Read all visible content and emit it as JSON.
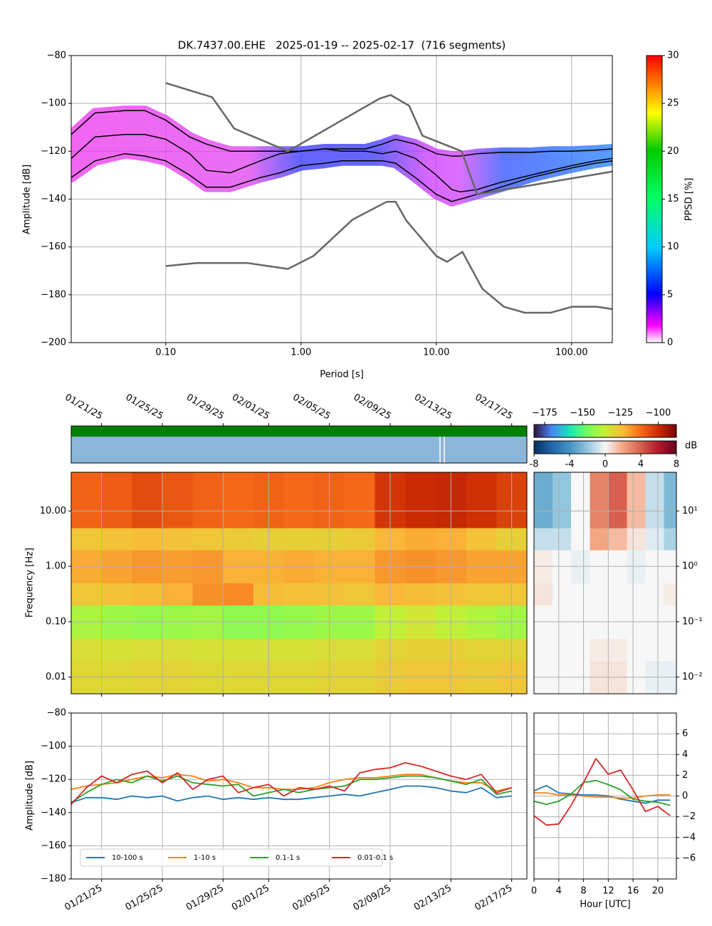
{
  "chart_data": [
    {
      "type": "ppsd",
      "title": "DK.7437.00.EHE   2025-01-19 -- 2025-02-17  (716 segments)",
      "xlabel": "Period [s]",
      "ylabel": "Amplitude [dB]",
      "log_x": true,
      "grid": true,
      "xlim": [
        0.02,
        200
      ],
      "ylim": [
        -200,
        -80
      ],
      "xticks": [
        {
          "value": 0.1,
          "label": "0.10"
        },
        {
          "value": 1,
          "label": "1.00"
        },
        {
          "value": 10,
          "label": "10.00"
        },
        {
          "value": 100,
          "label": "100.00"
        }
      ],
      "yticks": [
        {
          "value": -200,
          "label": "−200"
        },
        {
          "value": -180,
          "label": "−180"
        },
        {
          "value": -160,
          "label": "−160"
        },
        {
          "value": -140,
          "label": "−140"
        },
        {
          "value": -120,
          "label": "−120"
        },
        {
          "value": -100,
          "label": "−100"
        },
        {
          "value": -80,
          "label": "−80"
        }
      ],
      "x": [
        0.02,
        0.03,
        0.05,
        0.07,
        0.1,
        0.15,
        0.2,
        0.3,
        0.5,
        0.7,
        1,
        1.5,
        2,
        3,
        4,
        5,
        7,
        10,
        13,
        15,
        20,
        30,
        50,
        70,
        100,
        150,
        200
      ],
      "percentile_lines": [
        {
          "color": "#000000",
          "values": [
            -113,
            -104,
            -103,
            -103,
            -107,
            -114,
            -117,
            -120,
            -120,
            -120,
            -120,
            -119,
            -119,
            -119,
            -117,
            -115,
            -117,
            -121,
            -122,
            -122,
            -121,
            -120.5,
            -120.5,
            -120,
            -120,
            -119.5,
            -119
          ]
        },
        {
          "color": "#000000",
          "values": [
            -123,
            -114,
            -113,
            -113,
            -115,
            -121,
            -128,
            -129,
            -124,
            -121,
            -120,
            -119,
            -120,
            -120,
            -121,
            -120,
            -123,
            -130,
            -136,
            -137,
            -136,
            -133,
            -130,
            -128,
            -126,
            -124,
            -123
          ]
        },
        {
          "color": "#000000",
          "values": [
            -131,
            -124,
            -121,
            -122,
            -124,
            -130,
            -135,
            -135,
            -131,
            -129,
            -126,
            -125,
            -124,
            -124,
            -124,
            -125,
            -131,
            -138,
            -141,
            -140,
            -138,
            -135,
            -131,
            -129,
            -127,
            -125,
            -124
          ]
        }
      ],
      "noise_models": [
        {
          "color": "#666666",
          "x": [
            0.1,
            0.22,
            0.32,
            0.8,
            3.8,
            4.6,
            6.3,
            7.9,
            15.4,
            20,
            200
          ],
          "values": [
            -91.5,
            -97.4,
            -110.5,
            -120,
            -98,
            -96.5,
            -101,
            -113.5,
            -120,
            -138,
            -128.5
          ]
        },
        {
          "color": "#666666",
          "x": [
            0.1,
            0.17,
            0.4,
            0.8,
            1.24,
            2.4,
            4.3,
            5,
            6,
            10,
            12,
            15.6,
            21.9,
            31.6,
            45,
            70,
            101,
            154,
            200
          ],
          "values": [
            -168,
            -166.7,
            -166.7,
            -169.2,
            -163.7,
            -148.6,
            -141.1,
            -141.1,
            -149,
            -163.8,
            -166.2,
            -162.1,
            -177.5,
            -185,
            -187.5,
            -187.5,
            -185,
            -185,
            -186
          ]
        }
      ],
      "colorbar": {
        "label": "PPSD [%]",
        "lim": [
          0,
          30
        ],
        "ticks": [
          0,
          5,
          10,
          15,
          20,
          25,
          30
        ]
      }
    },
    {
      "type": "heatmap",
      "ylabel": "Frequency [Hz]",
      "log_y": true,
      "grid": true,
      "xlim": [
        "2025-01-19",
        "2025-02-18"
      ],
      "ylim": [
        0.005,
        50
      ],
      "xticks": [
        {
          "value": "2025-01-21",
          "label": "01/21/25"
        },
        {
          "value": "2025-01-25",
          "label": "01/25/25"
        },
        {
          "value": "2025-01-29",
          "label": "01/29/25"
        },
        {
          "value": "2025-02-01",
          "label": "02/01/25"
        },
        {
          "value": "2025-02-05",
          "label": "02/05/25"
        },
        {
          "value": "2025-02-09",
          "label": "02/09/25"
        },
        {
          "value": "2025-02-13",
          "label": "02/13/25"
        },
        {
          "value": "2025-02-17",
          "label": "02/17/25"
        }
      ],
      "yticks": [
        0.01,
        {
          "value": 0.1,
          "label": "0.10"
        },
        {
          "value": 1,
          "label": "1.00"
        },
        {
          "value": 10,
          "label": "10.00"
        }
      ],
      "x_bins": [
        "2025-01-19",
        "2025-01-21",
        "2025-01-23",
        "2025-01-25",
        "2025-01-27",
        "2025-01-29",
        "2025-01-31",
        "2025-02-02",
        "2025-02-04",
        "2025-02-06",
        "2025-02-08",
        "2025-02-10",
        "2025-02-12",
        "2025-02-14",
        "2025-02-16",
        "2025-02-18"
      ],
      "y_bins": [
        0.005,
        0.02,
        0.05,
        0.2,
        0.5,
        2,
        5,
        50
      ],
      "values": [
        [
          -130,
          -130,
          -129,
          -129,
          -130,
          -130,
          -130,
          -130,
          -129,
          -129,
          -127,
          -126,
          -126,
          -127,
          -126
        ],
        [
          -131,
          -132,
          -131,
          -131,
          -132,
          -132,
          -132,
          -132,
          -131,
          -131,
          -129,
          -128,
          -128,
          -129,
          -129
        ],
        [
          -139,
          -141,
          -142,
          -141,
          -140,
          -143,
          -143,
          -142,
          -141,
          -141,
          -136,
          -133,
          -136,
          -138,
          -140
        ],
        [
          -126,
          -125,
          -124,
          -122,
          -117,
          -116,
          -124,
          -125,
          -125,
          -126,
          -123,
          -124,
          -125,
          -126,
          -126
        ],
        [
          -121,
          -120,
          -118,
          -119,
          -118,
          -122,
          -122,
          -121,
          -122,
          -122,
          -118,
          -117,
          -118,
          -120,
          -120
        ],
        [
          -126,
          -125,
          -124,
          -125,
          -126,
          -127,
          -128,
          -128,
          -128,
          -127,
          -123,
          -121,
          -122,
          -125,
          -128
        ],
        [
          -110,
          -109,
          -106,
          -108,
          -110,
          -111,
          -110,
          -111,
          -110,
          -111,
          -102,
          -100,
          -99,
          -101,
          -104
        ]
      ],
      "colorbar": {
        "lim": [
          -182,
          -88
        ],
        "ticks": [
          {
            "value": -175,
            "label": "−175"
          },
          {
            "value": -150,
            "label": "−150"
          },
          {
            "value": -125,
            "label": "−125"
          },
          {
            "value": -100,
            "label": "−100"
          }
        ]
      }
    },
    {
      "type": "heatmap",
      "log_y": true,
      "grid": true,
      "xlim": [
        0,
        23
      ],
      "ylim": [
        0.005,
        50
      ],
      "yticks": [
        {
          "value": 0.01,
          "label": "10⁻²"
        },
        {
          "value": 0.1,
          "label": "10⁻¹"
        },
        {
          "value": 1,
          "label": "10⁰"
        },
        {
          "value": 10,
          "label": "10¹"
        }
      ],
      "x_bins": [
        0,
        3,
        6,
        9,
        12,
        15,
        18,
        21,
        23
      ],
      "y_bins": [
        0.005,
        0.02,
        0.05,
        0.2,
        0.5,
        2,
        5,
        50
      ],
      "values": [
        [
          0,
          0,
          0,
          0.5,
          0.5,
          0,
          -0.3,
          -0.3
        ],
        [
          0,
          0,
          0,
          0.3,
          0.3,
          0,
          0,
          0
        ],
        [
          0,
          0,
          0,
          0,
          0,
          0,
          0,
          0
        ],
        [
          0.5,
          0,
          0,
          0,
          0,
          0,
          0,
          0.3
        ],
        [
          0.3,
          0,
          -0.3,
          0,
          0,
          -0.3,
          0,
          0
        ],
        [
          -1,
          -1,
          0,
          2,
          1.5,
          0.5,
          -0.5,
          -1.5
        ],
        [
          -3,
          -2,
          0,
          3,
          4,
          1.5,
          -1,
          -2.5
        ]
      ],
      "colorbar": {
        "label": "dB",
        "lim": [
          -8,
          8
        ],
        "ticks": [
          -8,
          -4,
          0,
          4,
          8
        ]
      }
    },
    {
      "type": "line",
      "ylabel": "Amplitude [dB]",
      "grid": true,
      "legend": "lower left",
      "xlim": [
        "2025-01-19",
        "2025-02-18"
      ],
      "ylim": [
        -180,
        -80
      ],
      "xticks": [
        {
          "value": "2025-01-21",
          "label": "01/21/25"
        },
        {
          "value": "2025-01-25",
          "label": "01/25/25"
        },
        {
          "value": "2025-01-29",
          "label": "01/29/25"
        },
        {
          "value": "2025-02-01",
          "label": "02/01/25"
        },
        {
          "value": "2025-02-05",
          "label": "02/05/25"
        },
        {
          "value": "2025-02-09",
          "label": "02/09/25"
        },
        {
          "value": "2025-02-13",
          "label": "02/13/25"
        },
        {
          "value": "2025-02-17",
          "label": "02/17/25"
        }
      ],
      "yticks": [
        {
          "value": -180,
          "label": "−180"
        },
        {
          "value": -160,
          "label": "−160"
        },
        {
          "value": -140,
          "label": "−140"
        },
        {
          "value": -120,
          "label": "−120"
        },
        {
          "value": -100,
          "label": "−100"
        },
        {
          "value": -80,
          "label": "−80"
        }
      ],
      "x": [
        "2025-01-19",
        "2025-01-20",
        "2025-01-21",
        "2025-01-22",
        "2025-01-23",
        "2025-01-24",
        "2025-01-25",
        "2025-01-26",
        "2025-01-27",
        "2025-01-28",
        "2025-01-29",
        "2025-01-30",
        "2025-01-31",
        "2025-02-01",
        "2025-02-02",
        "2025-02-03",
        "2025-02-04",
        "2025-02-05",
        "2025-02-06",
        "2025-02-07",
        "2025-02-08",
        "2025-02-09",
        "2025-02-10",
        "2025-02-11",
        "2025-02-12",
        "2025-02-13",
        "2025-02-14",
        "2025-02-15",
        "2025-02-16",
        "2025-02-17"
      ],
      "series": [
        {
          "name": "10-100 s",
          "color": "#1f77b4",
          "values": [
            -134,
            -131,
            -131,
            -132,
            -130,
            -131,
            -130,
            -133,
            -131,
            -130,
            -132,
            -131,
            -132,
            -131,
            -132,
            -132,
            -131,
            -130,
            -129,
            -130,
            -128,
            -126,
            -124,
            -124,
            -125,
            -127,
            -128,
            -125,
            -131,
            -130
          ]
        },
        {
          "name": "1-10 s",
          "color": "#ff7f0e",
          "values": [
            -126,
            -124,
            -123,
            -122,
            -120,
            -118,
            -119,
            -117,
            -118,
            -121,
            -120,
            -122,
            -125,
            -125,
            -126,
            -126,
            -125,
            -122,
            -120,
            -119,
            -119,
            -118,
            -117,
            -117,
            -119,
            -121,
            -122,
            -122,
            -127,
            -125
          ]
        },
        {
          "name": "0.1-1 s",
          "color": "#2ca02c",
          "values": [
            -134,
            -128,
            -123,
            -120,
            -122,
            -118,
            -121,
            -118,
            -122,
            -123,
            -124,
            -123,
            -130,
            -128,
            -126,
            -128,
            -126,
            -125,
            -124,
            -120,
            -120,
            -119,
            -118,
            -118,
            -119,
            -121,
            -123,
            -120,
            -129,
            -127
          ]
        },
        {
          "name": "0.01-0.1 s",
          "color": "#d62728",
          "values": [
            -135,
            -125,
            -118,
            -122,
            -117,
            -115,
            -122,
            -116,
            -126,
            -120,
            -118,
            -128,
            -125,
            -123,
            -130,
            -125,
            -126,
            -124,
            -127,
            -116,
            -114,
            -113,
            -110,
            -112,
            -115,
            -118,
            -120,
            -117,
            -128,
            -125
          ]
        }
      ]
    },
    {
      "type": "line",
      "xlabel": "Hour [UTC]",
      "grid": true,
      "y_axis_side": "right",
      "xlim": [
        0,
        23
      ],
      "ylim": [
        -8,
        8
      ],
      "xticks": [
        0,
        4,
        8,
        12,
        16,
        20
      ],
      "yticks": [
        {
          "value": -6,
          "label": "−6"
        },
        {
          "value": -4,
          "label": "−4"
        },
        {
          "value": -2,
          "label": "−2"
        },
        0,
        2,
        4,
        6
      ],
      "x": [
        0,
        2,
        4,
        6,
        8,
        10,
        12,
        14,
        16,
        18,
        20,
        22
      ],
      "series": [
        {
          "color": "#1f77b4",
          "values": [
            0.5,
            1,
            0.3,
            0.2,
            0.1,
            0.1,
            0,
            -0.3,
            -0.5,
            -0.7,
            -0.4,
            -0.4
          ]
        },
        {
          "color": "#ff7f0e",
          "values": [
            0.3,
            0.3,
            0.1,
            0.1,
            0,
            -0.1,
            -0.1,
            -0.2,
            -0.2,
            0,
            0.1,
            0.1
          ]
        },
        {
          "color": "#2ca02c",
          "values": [
            -0.5,
            -0.8,
            -0.5,
            0.2,
            1.3,
            1.5,
            1.1,
            0.6,
            -0.3,
            -0.5,
            -0.6,
            -0.9
          ]
        },
        {
          "color": "#d62728",
          "values": [
            -1.9,
            -2.8,
            -2.7,
            -0.9,
            1.3,
            3.6,
            2.1,
            2.5,
            0.6,
            -1.5,
            -1,
            -1.9
          ]
        }
      ]
    }
  ]
}
